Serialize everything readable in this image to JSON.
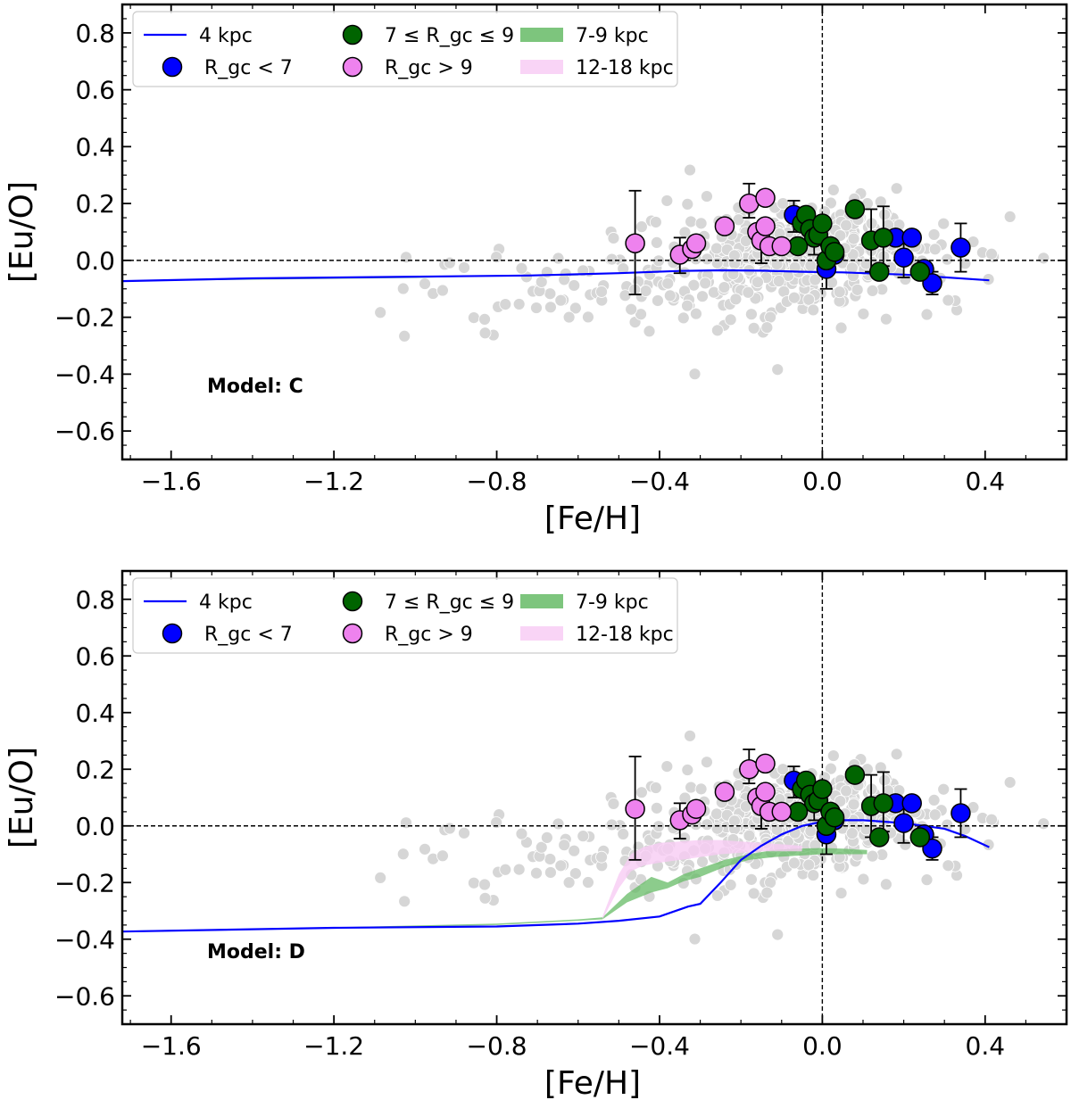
{
  "chart_data": [
    {
      "type": "scatter",
      "model_label": "Model: C",
      "xlabel": "[Fe/H]",
      "ylabel": "[Eu/O]",
      "xlim": [
        -1.72,
        0.6
      ],
      "ylim": [
        -0.7,
        0.9
      ],
      "xticks": [
        -1.6,
        -1.2,
        -0.8,
        -0.4,
        0.0,
        0.4
      ],
      "xtick_labels": [
        "−1.6",
        "−1.2",
        "−0.8",
        "−0.4",
        "0.0",
        "0.4"
      ],
      "yticks": [
        -0.6,
        -0.4,
        -0.2,
        0.0,
        0.2,
        0.4,
        0.6,
        0.8
      ],
      "ytick_labels": [
        "−0.6",
        "−0.4",
        "−0.2",
        "0.0",
        "0.2",
        "0.4",
        "0.6",
        "0.8"
      ],
      "reference_lines": {
        "y": 0.0,
        "x": 0.0
      },
      "legend": [
        {
          "label": "4 kpc",
          "kind": "line",
          "color": "#0000ff"
        },
        {
          "label": "R_gc < 7",
          "kind": "marker",
          "color": "#0000ff"
        },
        {
          "label": "7 ≤ R_gc ≤ 9",
          "kind": "marker",
          "color": "#006400"
        },
        {
          "label": "R_gc > 9",
          "kind": "marker",
          "color": "#ee82ee"
        },
        {
          "label": "7-9 kpc",
          "kind": "band",
          "color": "#66bb66"
        },
        {
          "label": "12-18 kpc",
          "kind": "band",
          "color": "#f8ccf4"
        }
      ],
      "series": [
        {
          "name": "4 kpc",
          "kind": "line",
          "color": "#0000ff",
          "x": [
            -1.72,
            -1.4,
            -1.05,
            -0.72,
            -0.5,
            -0.35,
            -0.25,
            -0.15,
            -0.05,
            0.05,
            0.2,
            0.41
          ],
          "y": [
            -0.073,
            -0.063,
            -0.058,
            -0.053,
            -0.045,
            -0.037,
            -0.035,
            -0.036,
            -0.04,
            -0.042,
            -0.05,
            -0.07
          ]
        },
        {
          "name": "7-9 kpc",
          "kind": "band",
          "color": "#66bb66",
          "opacity": 0.75,
          "x": [
            -1.72,
            -1.0,
            -0.8,
            -0.6
          ],
          "y_low": [
            -0.073,
            -0.062,
            -0.055,
            -0.053
          ],
          "y_high": [
            -0.07,
            -0.06,
            -0.052,
            -0.049
          ]
        },
        {
          "name": "12-18 kpc",
          "kind": "band",
          "color": "#f8ccf4",
          "opacity": 0.8,
          "x": [
            -0.8,
            -0.6
          ],
          "y_low": [
            -0.055,
            -0.052
          ],
          "y_high": [
            -0.052,
            -0.049
          ]
        },
        {
          "name": "R_gc < 7",
          "kind": "points",
          "color": "#0000ff",
          "x": [
            -0.07,
            0.01,
            0.03,
            0.18,
            0.2,
            0.22,
            0.25,
            0.27,
            0.34
          ],
          "y": [
            0.16,
            -0.03,
            0.02,
            0.08,
            0.01,
            0.08,
            -0.03,
            -0.08,
            0.045
          ]
        },
        {
          "name": "7 ≤ R_gc ≤ 9",
          "kind": "points",
          "color": "#006400",
          "x": [
            -0.05,
            -0.04,
            -0.03,
            -0.02,
            -0.01,
            0.0,
            0.01,
            0.02,
            0.03,
            0.08,
            0.12,
            0.14,
            0.15,
            0.24,
            -0.06
          ],
          "y": [
            0.13,
            0.16,
            0.11,
            0.08,
            0.09,
            0.13,
            0.0,
            0.05,
            0.03,
            0.18,
            0.07,
            -0.04,
            0.08,
            -0.04,
            0.05
          ]
        },
        {
          "name": "R_gc > 9",
          "kind": "points",
          "color": "#ee82ee",
          "x": [
            -0.46,
            -0.35,
            -0.32,
            -0.31,
            -0.24,
            -0.18,
            -0.16,
            -0.15,
            -0.14,
            -0.14,
            -0.13,
            -0.1
          ],
          "y": [
            0.06,
            0.02,
            0.04,
            0.06,
            0.12,
            0.2,
            0.1,
            0.07,
            0.22,
            0.12,
            0.05,
            0.05
          ]
        },
        {
          "name": "field stars",
          "kind": "background",
          "color": "#d6d6d6",
          "count": 500
        }
      ],
      "error_bars": [
        {
          "x": -0.46,
          "y": 0.06,
          "lo": -0.12,
          "hi": 0.245
        },
        {
          "x": -0.35,
          "y": 0.02,
          "lo": -0.045,
          "hi": 0.08
        },
        {
          "x": -0.18,
          "y": 0.2,
          "lo": 0.15,
          "hi": 0.27
        },
        {
          "x": -0.15,
          "y": 0.07,
          "lo": -0.01,
          "hi": 0.13
        },
        {
          "x": -0.07,
          "y": 0.16,
          "lo": 0.1,
          "hi": 0.21
        },
        {
          "x": -0.02,
          "y": 0.08,
          "lo": 0.02,
          "hi": 0.14
        },
        {
          "x": 0.01,
          "y": -0.03,
          "lo": -0.1,
          "hi": 0.05
        },
        {
          "x": 0.12,
          "y": 0.07,
          "lo": -0.04,
          "hi": 0.18
        },
        {
          "x": 0.15,
          "y": 0.08,
          "lo": -0.02,
          "hi": 0.19
        },
        {
          "x": 0.2,
          "y": 0.01,
          "lo": -0.06,
          "hi": 0.06
        },
        {
          "x": 0.27,
          "y": -0.08,
          "lo": -0.12,
          "hi": -0.04
        },
        {
          "x": 0.34,
          "y": 0.045,
          "lo": -0.04,
          "hi": 0.13
        }
      ]
    },
    {
      "type": "scatter",
      "model_label": "Model: D",
      "xlabel": "[Fe/H]",
      "ylabel": "[Eu/O]",
      "xlim": [
        -1.72,
        0.6
      ],
      "ylim": [
        -0.7,
        0.9
      ],
      "xticks": [
        -1.6,
        -1.2,
        -0.8,
        -0.4,
        0.0,
        0.4
      ],
      "xtick_labels": [
        "−1.6",
        "−1.2",
        "−0.8",
        "−0.4",
        "0.0",
        "0.4"
      ],
      "yticks": [
        -0.6,
        -0.4,
        -0.2,
        0.0,
        0.2,
        0.4,
        0.6,
        0.8
      ],
      "ytick_labels": [
        "−0.6",
        "−0.4",
        "−0.2",
        "0.0",
        "0.2",
        "0.4",
        "0.6",
        "0.8"
      ],
      "reference_lines": {
        "y": 0.0,
        "x": 0.0
      },
      "legend": [
        {
          "label": "4 kpc",
          "kind": "line",
          "color": "#0000ff"
        },
        {
          "label": "R_gc < 7",
          "kind": "marker",
          "color": "#0000ff"
        },
        {
          "label": "7 ≤ R_gc ≤ 9",
          "kind": "marker",
          "color": "#006400"
        },
        {
          "label": "R_gc > 9",
          "kind": "marker",
          "color": "#ee82ee"
        },
        {
          "label": "7-9 kpc",
          "kind": "band",
          "color": "#66bb66"
        },
        {
          "label": "12-18 kpc",
          "kind": "band",
          "color": "#f8ccf4"
        }
      ],
      "series": [
        {
          "name": "4 kpc",
          "kind": "line",
          "color": "#0000ff",
          "x": [
            -1.72,
            -1.2,
            -0.8,
            -0.6,
            -0.5,
            -0.4,
            -0.33,
            -0.3,
            -0.25,
            -0.2,
            -0.15,
            -0.1,
            -0.05,
            0.0,
            0.05,
            0.1,
            0.2,
            0.3,
            0.35,
            0.41
          ],
          "y": [
            -0.373,
            -0.36,
            -0.355,
            -0.345,
            -0.335,
            -0.32,
            -0.285,
            -0.275,
            -0.2,
            -0.12,
            -0.07,
            -0.03,
            0.0,
            0.015,
            0.02,
            0.02,
            0.01,
            -0.01,
            -0.035,
            -0.075
          ]
        },
        {
          "name": "7-9 kpc",
          "kind": "band",
          "color": "#66bb66",
          "opacity": 0.75,
          "x": [
            -1.72,
            -1.2,
            -0.8,
            -0.6,
            -0.54,
            -0.48,
            -0.42,
            -0.38,
            -0.34,
            -0.3,
            -0.24,
            -0.18,
            -0.12,
            -0.06,
            0.0,
            0.05,
            0.11
          ],
          "y_low": [
            -0.375,
            -0.362,
            -0.35,
            -0.335,
            -0.33,
            -0.27,
            -0.235,
            -0.22,
            -0.195,
            -0.18,
            -0.145,
            -0.12,
            -0.11,
            -0.105,
            -0.1,
            -0.1,
            -0.1
          ],
          "y_high": [
            -0.37,
            -0.358,
            -0.345,
            -0.33,
            -0.323,
            -0.24,
            -0.18,
            -0.2,
            -0.17,
            -0.15,
            -0.12,
            -0.1,
            -0.085,
            -0.08,
            -0.078,
            -0.08,
            -0.085
          ]
        },
        {
          "name": "12-18 kpc",
          "kind": "band",
          "color": "#f8ccf4",
          "opacity": 0.8,
          "x": [
            -0.54,
            -0.5,
            -0.47,
            -0.44,
            -0.4,
            -0.35,
            -0.3,
            -0.25,
            -0.2,
            -0.15,
            -0.1,
            -0.05
          ],
          "y_low": [
            -0.33,
            -0.22,
            -0.16,
            -0.14,
            -0.13,
            -0.12,
            -0.11,
            -0.1,
            -0.095,
            -0.09,
            -0.09,
            -0.09
          ],
          "y_high": [
            -0.32,
            -0.17,
            -0.1,
            -0.075,
            -0.06,
            -0.055,
            -0.05,
            -0.05,
            -0.055,
            -0.06,
            -0.065,
            -0.07
          ]
        },
        {
          "name": "R_gc < 7",
          "kind": "points",
          "color": "#0000ff",
          "x": [
            -0.07,
            0.01,
            0.03,
            0.18,
            0.2,
            0.22,
            0.25,
            0.27,
            0.34
          ],
          "y": [
            0.16,
            -0.03,
            0.02,
            0.08,
            0.01,
            0.08,
            -0.03,
            -0.08,
            0.045
          ]
        },
        {
          "name": "7 ≤ R_gc ≤ 9",
          "kind": "points",
          "color": "#006400",
          "x": [
            -0.05,
            -0.04,
            -0.03,
            -0.02,
            -0.01,
            0.0,
            0.01,
            0.02,
            0.03,
            0.08,
            0.12,
            0.14,
            0.15,
            0.24,
            -0.06
          ],
          "y": [
            0.13,
            0.16,
            0.11,
            0.08,
            0.09,
            0.13,
            0.0,
            0.05,
            0.03,
            0.18,
            0.07,
            -0.04,
            0.08,
            -0.04,
            0.05
          ]
        },
        {
          "name": "R_gc > 9",
          "kind": "points",
          "color": "#ee82ee",
          "x": [
            -0.46,
            -0.35,
            -0.32,
            -0.31,
            -0.24,
            -0.18,
            -0.16,
            -0.15,
            -0.14,
            -0.14,
            -0.13,
            -0.1
          ],
          "y": [
            0.06,
            0.02,
            0.04,
            0.06,
            0.12,
            0.2,
            0.1,
            0.07,
            0.22,
            0.12,
            0.05,
            0.05
          ]
        },
        {
          "name": "field stars",
          "kind": "background",
          "color": "#d6d6d6",
          "count": 500
        }
      ],
      "error_bars": [
        {
          "x": -0.46,
          "y": 0.06,
          "lo": -0.12,
          "hi": 0.245
        },
        {
          "x": -0.35,
          "y": 0.02,
          "lo": -0.045,
          "hi": 0.08
        },
        {
          "x": -0.18,
          "y": 0.2,
          "lo": 0.15,
          "hi": 0.27
        },
        {
          "x": -0.15,
          "y": 0.07,
          "lo": -0.01,
          "hi": 0.13
        },
        {
          "x": -0.07,
          "y": 0.16,
          "lo": 0.1,
          "hi": 0.21
        },
        {
          "x": -0.02,
          "y": 0.08,
          "lo": 0.02,
          "hi": 0.14
        },
        {
          "x": 0.01,
          "y": -0.03,
          "lo": -0.1,
          "hi": 0.05
        },
        {
          "x": 0.12,
          "y": 0.07,
          "lo": -0.04,
          "hi": 0.18
        },
        {
          "x": 0.15,
          "y": 0.08,
          "lo": -0.02,
          "hi": 0.19
        },
        {
          "x": 0.2,
          "y": 0.01,
          "lo": -0.06,
          "hi": 0.06
        },
        {
          "x": 0.27,
          "y": -0.08,
          "lo": -0.12,
          "hi": -0.04
        },
        {
          "x": 0.34,
          "y": 0.045,
          "lo": -0.04,
          "hi": 0.13
        }
      ]
    }
  ]
}
